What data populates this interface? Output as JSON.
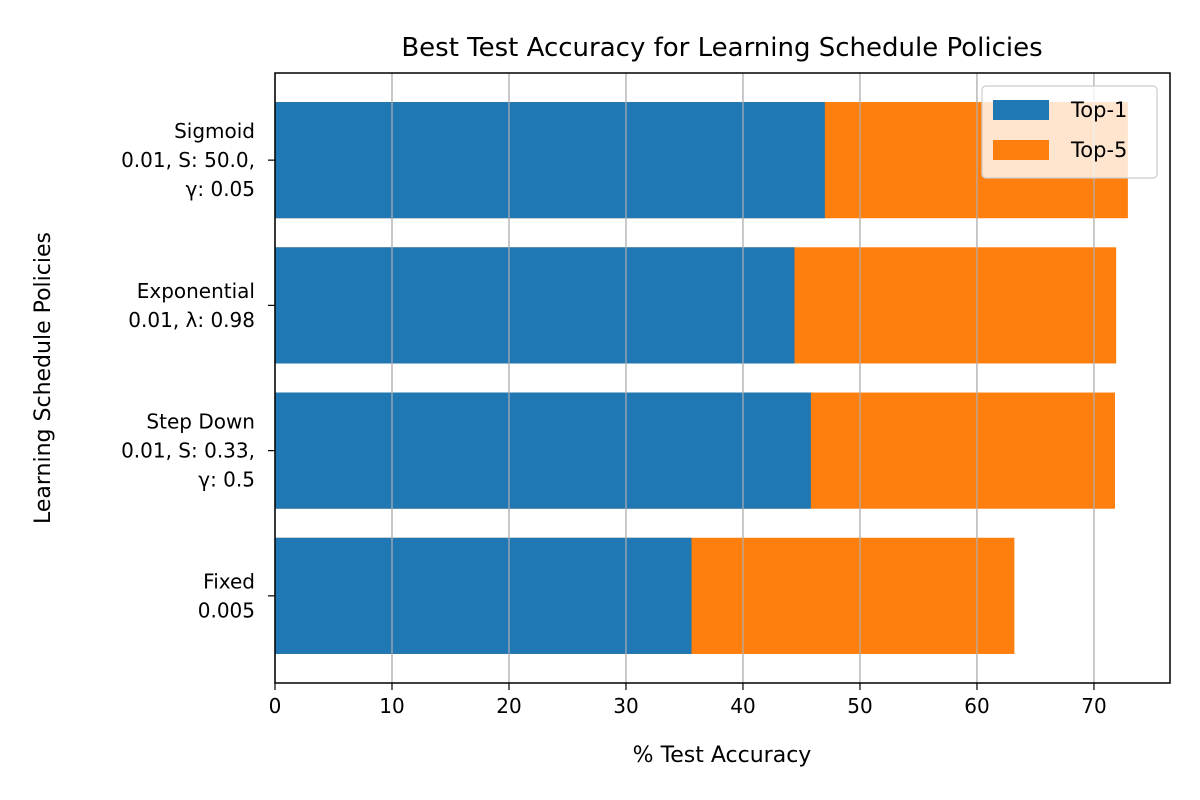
{
  "chart_data": {
    "type": "bar",
    "orientation": "horizontal",
    "stacked": "overlay",
    "title": "Best Test Accuracy for Learning Schedule Policies",
    "xlabel": "% Test Accuracy",
    "ylabel": "Learning Schedule Policies",
    "categories": [
      [
        "Fixed",
        "0.005"
      ],
      [
        "Step Down",
        "0.01, S: 0.33,",
        "γ: 0.5"
      ],
      [
        "Exponential",
        "0.01, λ: 0.98"
      ],
      [
        "Sigmoid",
        "0.01, S: 50.0,",
        "γ: 0.05"
      ]
    ],
    "series": [
      {
        "name": "Top-5",
        "color": "#ff7f0e",
        "values": [
          63.2,
          71.8,
          71.9,
          72.9
        ]
      },
      {
        "name": "Top-1",
        "color": "#1f77b4",
        "values": [
          35.6,
          45.8,
          44.4,
          47.0
        ]
      }
    ],
    "xlim": [
      0,
      76.5
    ],
    "xticks": [
      0,
      10,
      20,
      30,
      40,
      50,
      60,
      70
    ],
    "grid": "x",
    "legend": {
      "position": "upper-right",
      "entries": [
        "Top-1",
        "Top-5"
      ]
    }
  }
}
